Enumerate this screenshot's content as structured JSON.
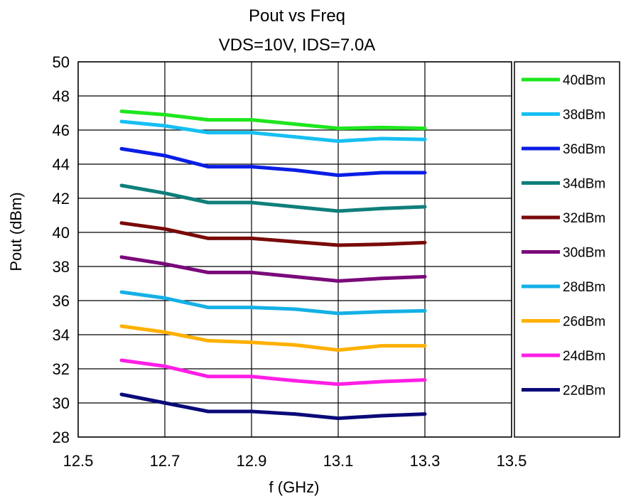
{
  "chart_data": {
    "type": "line",
    "title": "Pout vs Freq",
    "subtitle": "VDS=10V, IDS=7.0A",
    "xlabel": "f (GHz)",
    "ylabel": "Pout (dBm)",
    "xlim": [
      12.5,
      13.5
    ],
    "ylim": [
      28,
      50
    ],
    "x_ticks": [
      "12.5",
      "12.7",
      "12.9",
      "13.1",
      "13.3",
      "13.5"
    ],
    "x_tick_values": [
      12.5,
      12.7,
      12.9,
      13.1,
      13.3,
      13.5
    ],
    "y_ticks": [
      "28",
      "30",
      "32",
      "34",
      "36",
      "38",
      "40",
      "42",
      "44",
      "46",
      "48",
      "50"
    ],
    "y_tick_values": [
      28,
      30,
      32,
      34,
      36,
      38,
      40,
      42,
      44,
      46,
      48,
      50
    ],
    "grid": true,
    "legend_position": "right",
    "x": [
      12.6,
      12.7,
      12.8,
      12.9,
      13.0,
      13.1,
      13.2,
      13.3
    ],
    "series": [
      {
        "name": "40dBm",
        "color": "#1ee61e",
        "values": [
          47.1,
          46.9,
          46.6,
          46.6,
          46.35,
          46.1,
          46.15,
          46.1
        ]
      },
      {
        "name": "38dBm",
        "color": "#16bff2",
        "values": [
          46.5,
          46.25,
          45.85,
          45.85,
          45.6,
          45.35,
          45.5,
          45.45
        ]
      },
      {
        "name": "36dBm",
        "color": "#0a1ee6",
        "values": [
          44.9,
          44.5,
          43.85,
          43.85,
          43.65,
          43.35,
          43.5,
          43.5
        ]
      },
      {
        "name": "34dBm",
        "color": "#0f7f7a",
        "values": [
          42.75,
          42.3,
          41.75,
          41.75,
          41.5,
          41.25,
          41.4,
          41.5
        ]
      },
      {
        "name": "32dBm",
        "color": "#7a0a0a",
        "values": [
          40.55,
          40.2,
          39.65,
          39.65,
          39.45,
          39.25,
          39.3,
          39.4
        ]
      },
      {
        "name": "30dBm",
        "color": "#7a0a7a",
        "values": [
          38.55,
          38.15,
          37.65,
          37.65,
          37.4,
          37.15,
          37.3,
          37.4
        ]
      },
      {
        "name": "28dBm",
        "color": "#14b0e6",
        "values": [
          36.5,
          36.15,
          35.6,
          35.6,
          35.5,
          35.25,
          35.35,
          35.4
        ]
      },
      {
        "name": "26dBm",
        "color": "#ffb000",
        "values": [
          34.5,
          34.15,
          33.65,
          33.55,
          33.4,
          33.1,
          33.35,
          33.35
        ]
      },
      {
        "name": "24dBm",
        "color": "#ff1ee6",
        "values": [
          32.5,
          32.15,
          31.55,
          31.55,
          31.3,
          31.1,
          31.25,
          31.35
        ]
      },
      {
        "name": "22dBm",
        "color": "#0a0a78",
        "values": [
          30.5,
          30.0,
          29.5,
          29.5,
          29.35,
          29.1,
          29.25,
          29.35
        ]
      }
    ]
  }
}
